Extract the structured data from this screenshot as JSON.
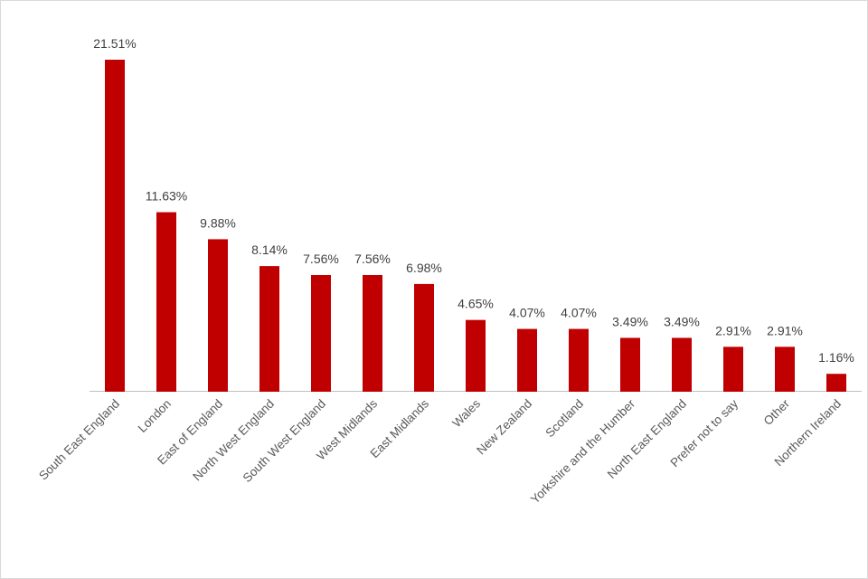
{
  "chart_data": {
    "type": "bar",
    "title": "",
    "xlabel": "",
    "ylabel": "",
    "ylim": [
      0,
      21.51
    ],
    "grid": false,
    "legend": "none",
    "bar_color": "#C00000",
    "categories": [
      "South East England",
      "London",
      "East of England",
      "North West England",
      "South West England",
      "West Midlands",
      "East Midlands",
      "Wales",
      "New Zealand",
      "Scotland",
      "Yorkshire and the Humber",
      "North East England",
      "Prefer not to say",
      "Other",
      "Northern Ireland"
    ],
    "values": [
      21.51,
      11.63,
      9.88,
      8.14,
      7.56,
      7.56,
      6.98,
      4.65,
      4.07,
      4.07,
      3.49,
      3.49,
      2.91,
      2.91,
      1.16
    ],
    "labels": [
      "21.51%",
      "11.63%",
      "9.88%",
      "8.14%",
      "7.56%",
      "7.56%",
      "6.98%",
      "4.65%",
      "4.07%",
      "4.07%",
      "3.49%",
      "3.49%",
      "2.91%",
      "2.91%",
      "1.16%"
    ]
  }
}
